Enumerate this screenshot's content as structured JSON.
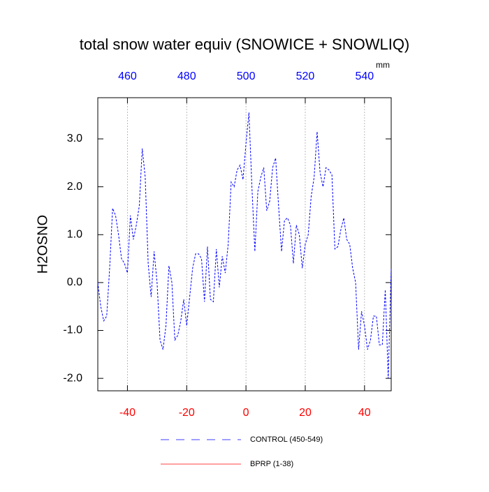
{
  "chart_data": {
    "type": "line",
    "title": "total snow water equiv (SNOWICE + SNOWLIQ)",
    "y_label": "H2OSNO",
    "top_axis_units": "mm",
    "x": [
      -50,
      -49,
      -48,
      -47,
      -46,
      -45,
      -44,
      -43,
      -42,
      -41,
      -40,
      -39,
      -38,
      -37,
      -36,
      -35,
      -34,
      -33,
      -32,
      -31,
      -30,
      -29,
      -28,
      -27,
      -26,
      -25,
      -24,
      -23,
      -22,
      -21,
      -20,
      -19,
      -18,
      -17,
      -16,
      -15,
      -14,
      -13,
      -12,
      -11,
      -10,
      -9,
      -8,
      -7,
      -6,
      -5,
      -4,
      -3,
      -2,
      -1,
      0,
      1,
      2,
      3,
      4,
      5,
      6,
      7,
      8,
      9,
      10,
      11,
      12,
      13,
      14,
      15,
      16,
      17,
      18,
      19,
      20,
      21,
      22,
      23,
      24,
      25,
      26,
      27,
      28,
      29,
      30,
      31,
      32,
      33,
      34,
      35,
      36,
      37,
      38,
      39,
      40,
      41,
      42,
      43,
      44,
      45,
      46,
      47,
      48,
      49
    ],
    "series": [
      {
        "name": "CONTROL (450-549)",
        "color": "#0000ff",
        "dash": true,
        "values": [
          0.0,
          -0.5,
          -0.8,
          -0.7,
          0.3,
          1.55,
          1.4,
          1.0,
          0.5,
          0.4,
          0.2,
          1.4,
          0.9,
          1.2,
          1.6,
          2.8,
          2.2,
          0.4,
          -0.3,
          0.65,
          0.0,
          -1.2,
          -1.4,
          -0.9,
          0.35,
          0.0,
          -1.2,
          -1.1,
          -0.8,
          -0.35,
          -0.9,
          -0.3,
          0.3,
          0.6,
          0.6,
          0.5,
          -0.4,
          0.75,
          -0.35,
          -0.4,
          0.7,
          -0.1,
          0.55,
          0.2,
          0.8,
          2.1,
          2.0,
          2.35,
          2.45,
          2.15,
          2.9,
          3.55,
          2.0,
          0.65,
          1.9,
          2.2,
          2.4,
          1.5,
          1.7,
          2.4,
          2.6,
          1.6,
          0.65,
          1.3,
          1.35,
          1.2,
          0.4,
          1.2,
          1.0,
          0.3,
          0.8,
          1.0,
          1.8,
          2.2,
          3.15,
          2.3,
          2.0,
          2.4,
          2.35,
          2.25,
          0.7,
          0.75,
          1.1,
          1.35,
          0.9,
          0.8,
          0.3,
          0.0,
          -1.4,
          -0.6,
          -0.9,
          -1.4,
          -1.2,
          -0.7,
          -0.7,
          -1.3,
          -1.3,
          -0.15,
          -2.0,
          0.3
        ]
      },
      {
        "name": "BPRP (1-38)",
        "color": "#ff0000",
        "dash": false,
        "values": [
          null,
          null,
          null,
          null,
          null,
          null,
          null,
          null,
          null,
          null,
          null,
          null,
          null,
          null,
          null,
          null,
          null,
          null,
          null,
          null,
          null,
          null,
          null,
          null,
          null,
          null,
          null,
          null,
          null,
          null,
          null,
          null,
          null,
          null,
          null,
          null,
          null,
          null,
          null,
          null,
          null,
          null,
          null,
          null,
          null,
          null,
          null,
          null,
          null,
          null,
          null,
          null,
          null,
          null,
          null,
          null,
          null,
          null,
          null,
          null,
          null,
          null,
          null,
          null,
          null,
          null,
          null,
          null,
          null,
          null,
          null,
          null,
          null,
          null,
          null,
          null,
          null,
          null,
          null,
          null,
          null,
          null,
          null,
          null,
          null,
          null,
          null,
          null,
          null,
          null,
          null,
          null,
          null,
          null,
          null,
          null,
          null,
          null,
          null,
          null
        ]
      }
    ],
    "xlim": [
      -50,
      49
    ],
    "xticks": [
      -40,
      -20,
      0,
      20,
      40
    ],
    "xtick_color": "#ff0000",
    "x2lim": [
      450,
      549
    ],
    "x2ticks": [
      460,
      480,
      500,
      520,
      540
    ],
    "x2tick_color": "#0000ff",
    "ylim": [
      -2.26,
      3.86
    ],
    "yticks": [
      {
        "value": -2,
        "label": "-2.0"
      },
      {
        "value": -1,
        "label": "-1.0"
      },
      {
        "value": 0,
        "label": "0.0"
      },
      {
        "value": 1,
        "label": "1.0"
      },
      {
        "value": 2,
        "label": "2.0"
      },
      {
        "value": 3,
        "label": "3.0"
      }
    ],
    "grid": true
  }
}
